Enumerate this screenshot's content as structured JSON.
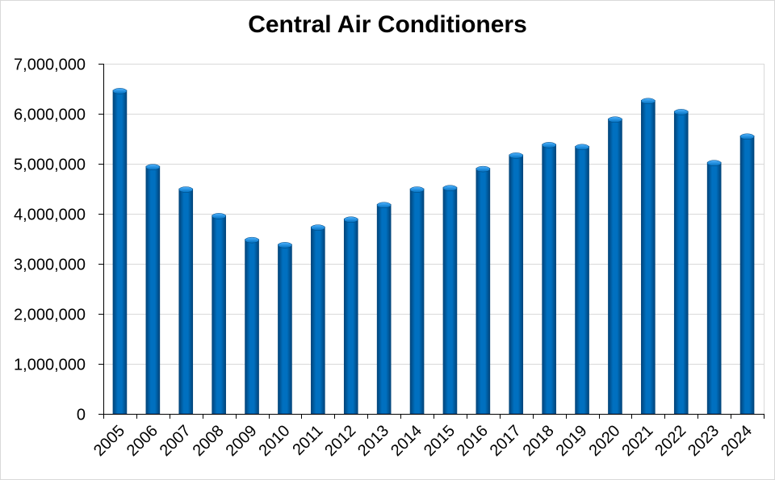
{
  "chart_data": {
    "type": "bar",
    "title": "Central Air Conditioners",
    "xlabel": "",
    "ylabel": "",
    "categories": [
      "2005",
      "2006",
      "2007",
      "2008",
      "2009",
      "2010",
      "2011",
      "2012",
      "2013",
      "2014",
      "2015",
      "2016",
      "2017",
      "2018",
      "2019",
      "2020",
      "2021",
      "2022",
      "2023",
      "2024"
    ],
    "values": [
      6470000,
      4950000,
      4500000,
      3970000,
      3490000,
      3390000,
      3740000,
      3900000,
      4190000,
      4500000,
      4530000,
      4910000,
      5180000,
      5390000,
      5350000,
      5900000,
      6270000,
      6050000,
      5030000,
      5560000
    ],
    "ylim": [
      0,
      7000000
    ],
    "yticks": [
      0,
      1000000,
      2000000,
      3000000,
      4000000,
      5000000,
      6000000,
      7000000
    ],
    "ytick_labels": [
      "0",
      "1,000,000",
      "2,000,000",
      "3,000,000",
      "4,000,000",
      "5,000,000",
      "6,000,000",
      "7,000,000"
    ],
    "grid": true,
    "legend": "none",
    "colors": {
      "bar": "#0070c0",
      "bar_highlight": "#4fb3ff",
      "bar_shadow": "#00447a",
      "grid": "#d9d9d9",
      "axis": "#000000"
    }
  }
}
